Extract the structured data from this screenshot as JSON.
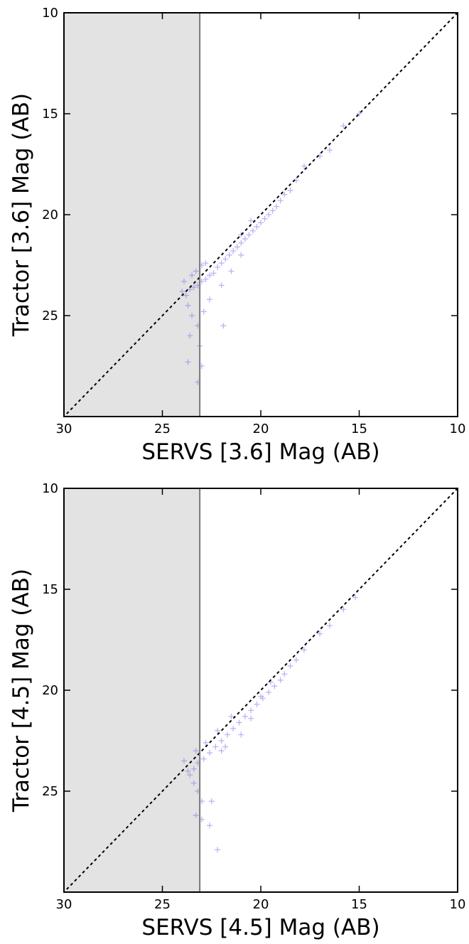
{
  "chart_data": [
    {
      "type": "scatter",
      "xlabel": "SERVS [3.6] Mag (AB)",
      "ylabel": "Tractor [3.6] Mag (AB)",
      "color": "#7b68ee",
      "xlim": [
        30,
        10
      ],
      "ylim": [
        30,
        10
      ],
      "xticks": [
        30,
        25,
        20,
        15,
        10
      ],
      "yticks": [
        25,
        20,
        15,
        10
      ],
      "vline": 23.1,
      "shade_left": true,
      "diagonal": true,
      "x": [
        15.0,
        15.8,
        16.5,
        17.0,
        17.8,
        18.2,
        18.5,
        18.8,
        19.0,
        19.2,
        19.4,
        19.6,
        19.8,
        20.0,
        20.2,
        20.4,
        20.6,
        20.8,
        21.0,
        21.2,
        21.0,
        20.5,
        21.4,
        21.6,
        21.8,
        22.0,
        22.2,
        21.5,
        21.0,
        22.4,
        22.6,
        22.8,
        23.0,
        23.2,
        23.4,
        23.6,
        23.8,
        23.5,
        23.3,
        23.0,
        22.8,
        23.7,
        23.5,
        23.2,
        22.9,
        22.0,
        21.9,
        23.7,
        23.0,
        23.2,
        23.1,
        22.6,
        24.0,
        23.9,
        23.6
      ],
      "values": [
        15.0,
        15.6,
        16.8,
        17.1,
        17.6,
        18.3,
        18.8,
        19.0,
        19.3,
        19.6,
        19.8,
        20.0,
        20.2,
        20.4,
        20.6,
        20.8,
        21.0,
        21.2,
        21.4,
        21.6,
        21.0,
        20.3,
        21.8,
        22.0,
        22.2,
        22.4,
        22.6,
        22.8,
        22.0,
        22.9,
        23.0,
        23.2,
        23.3,
        23.5,
        23.6,
        23.7,
        24.0,
        23.0,
        22.8,
        22.5,
        22.4,
        24.5,
        25.0,
        25.5,
        24.8,
        23.5,
        25.5,
        27.3,
        27.5,
        28.3,
        26.5,
        24.2,
        23.8,
        23.3,
        26.0
      ]
    },
    {
      "type": "scatter",
      "xlabel": "SERVS [4.5] Mag (AB)",
      "ylabel": "Tractor [4.5] Mag (AB)",
      "color": "#7b68ee",
      "xlim": [
        30,
        10
      ],
      "ylim": [
        30,
        10
      ],
      "xticks": [
        30,
        25,
        20,
        15,
        10
      ],
      "yticks": [
        25,
        20,
        15,
        10
      ],
      "vline": 23.1,
      "shade_left": true,
      "diagonal": true,
      "x": [
        15.2,
        15.8,
        16.5,
        17.0,
        17.8,
        18.2,
        18.5,
        18.8,
        19.0,
        19.3,
        19.6,
        19.9,
        20.2,
        20.5,
        20.8,
        21.1,
        21.4,
        21.7,
        22.0,
        22.3,
        22.6,
        22.9,
        23.2,
        23.4,
        23.6,
        23.3,
        22.8,
        22.2,
        21.5,
        20.5,
        21.0,
        23.4,
        23.2,
        23.0,
        22.5,
        23.3,
        23.0,
        22.6,
        22.2,
        23.7,
        23.9,
        22.0,
        21.8,
        20.0,
        19.5
      ],
      "values": [
        15.4,
        16.0,
        16.8,
        17.2,
        18.0,
        18.5,
        18.8,
        19.2,
        19.5,
        19.8,
        20.1,
        20.4,
        20.7,
        21.0,
        21.3,
        21.6,
        21.9,
        22.2,
        22.5,
        22.8,
        23.1,
        23.4,
        23.6,
        23.9,
        24.2,
        23.0,
        22.6,
        22.0,
        21.3,
        21.4,
        22.2,
        24.6,
        25.0,
        25.5,
        25.5,
        26.2,
        26.4,
        26.7,
        27.9,
        24.0,
        23.5,
        23.0,
        22.8,
        20.3,
        19.6
      ]
    }
  ]
}
